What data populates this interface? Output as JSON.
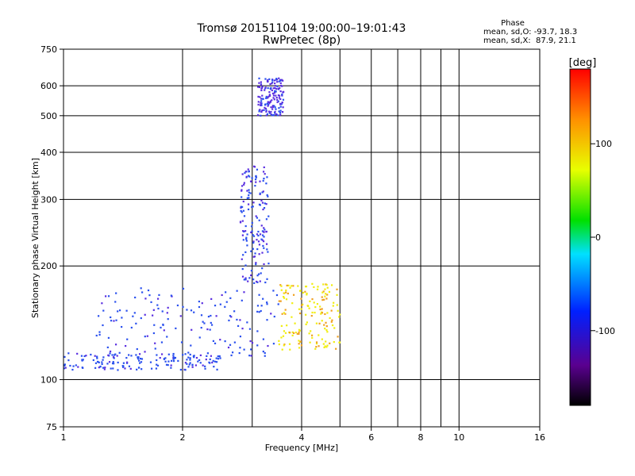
{
  "chart_data": {
    "type": "scatter",
    "title": "Tromsø 20151104 19:00:00–19:01:43",
    "subtitle": "RwPretec (8p)",
    "xlabel": "Frequency [MHz]",
    "ylabel": "Stationary phase Virtual Height [km]",
    "x_scale": "log",
    "y_scale": "log",
    "xlim": [
      1,
      16
    ],
    "ylim": [
      75,
      750
    ],
    "x_ticks": [
      1,
      2,
      4,
      6,
      8,
      10,
      16
    ],
    "y_ticks": [
      75,
      100,
      200,
      300,
      400,
      500,
      600,
      750
    ],
    "grid": true,
    "phase_box": {
      "title": "Phase",
      "line_o": "mean, sd,O: -93.7, 18.3",
      "line_x": "mean, sd,X:  87.9, 21.1"
    },
    "colorbar": {
      "label": "[deg]",
      "range": [
        -180,
        180
      ],
      "ticks": [
        100,
        0,
        -100
      ],
      "colormap": "rainbow (black → purple → blue → cyan → green → yellow → orange → red)"
    },
    "point_color": {
      "main": "#2a50ee",
      "high": "#5a2ee0",
      "mid": "#3fb8e8",
      "yellow": "#f1ee10",
      "orange": "#f0a020"
    },
    "series": [
      {
        "trace": "ground_trace",
        "freq_range_MHz": [
          1.0,
          2.5
        ],
        "height_km": [
          106,
          118
        ],
        "phase_deg": -100
      },
      {
        "trace": "lower_band_spread",
        "freq_range_MHz": [
          1.2,
          3.5
        ],
        "height_km": [
          115,
          175
        ],
        "phase_deg": -100
      },
      {
        "trace": "steep_rise",
        "freq_range_MHz": [
          2.8,
          3.3
        ],
        "height_km": [
          180,
          370
        ],
        "phase_deg": -110
      },
      {
        "trace": "upper_echo",
        "freq_range_MHz": [
          3.1,
          3.6
        ],
        "height_km": [
          500,
          630
        ],
        "phase_deg": -120
      },
      {
        "trace": "x_mode_cluster",
        "freq_range_MHz": [
          3.5,
          5.0
        ],
        "height_km": [
          120,
          180
        ],
        "phase_deg": 100
      }
    ]
  }
}
